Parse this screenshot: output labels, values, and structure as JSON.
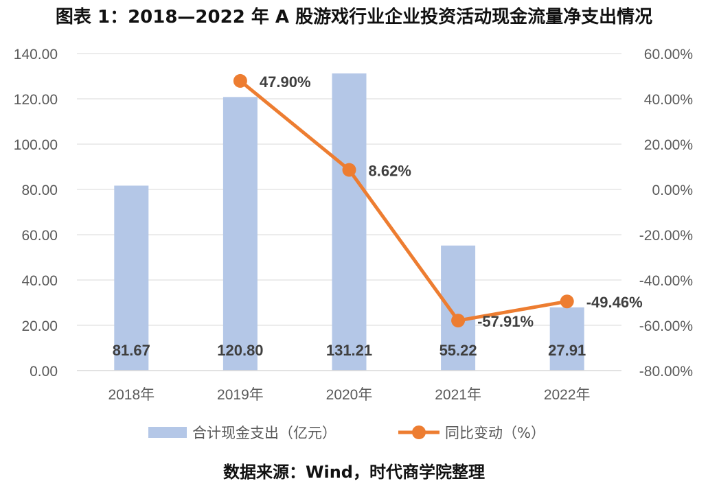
{
  "title": "图表 1：2018—2022 年 A 股游戏行业企业投资活动现金流量净支出情况",
  "source": "数据来源：Wind，时代商学院整理",
  "colors": {
    "bar": "#b4c7e7",
    "line": "#ed7d31",
    "grid": "#d9d9d9",
    "tick_text": "#595959",
    "label_text": "#3f3f3f"
  },
  "chart_data": {
    "type": "bar+line",
    "categories": [
      "2018年",
      "2019年",
      "2020年",
      "2021年",
      "2022年"
    ],
    "series": [
      {
        "name": "合计现金支出（亿元）",
        "type": "bar",
        "axis": "left",
        "values": [
          81.67,
          120.8,
          131.21,
          55.22,
          27.91
        ],
        "labels": [
          "81.67",
          "120.80",
          "131.21",
          "55.22",
          "27.91"
        ]
      },
      {
        "name": "同比变动（%）",
        "type": "line",
        "axis": "right",
        "x": [
          "2019年",
          "2020年",
          "2021年",
          "2022年"
        ],
        "values": [
          47.9,
          8.62,
          -57.91,
          -49.46
        ],
        "labels": [
          "47.90%",
          "8.62%",
          "-57.91%",
          "-49.46%"
        ]
      }
    ],
    "left_axis": {
      "range": [
        0,
        140
      ],
      "ticks": [
        "0.00",
        "20.00",
        "40.00",
        "60.00",
        "80.00",
        "100.00",
        "120.00",
        "140.00"
      ]
    },
    "right_axis": {
      "range": [
        -80,
        60
      ],
      "ticks": [
        "-80.00%",
        "-60.00%",
        "-40.00%",
        "-20.00%",
        "0.00%",
        "20.00%",
        "40.00%",
        "60.00%"
      ]
    },
    "grid": true,
    "legend": "bottom"
  }
}
